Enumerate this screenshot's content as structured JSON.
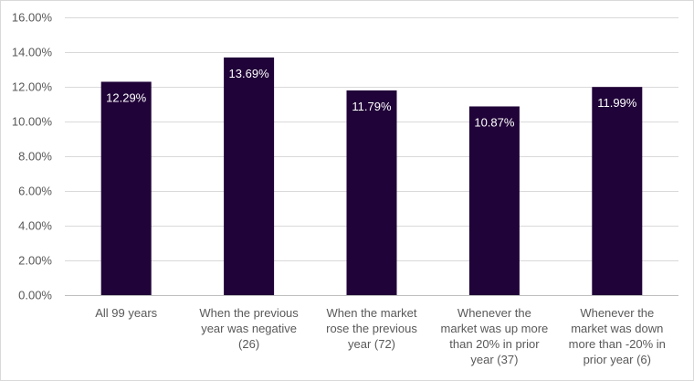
{
  "chart_data": {
    "type": "bar",
    "title": "",
    "xlabel": "",
    "ylabel": "",
    "categories": [
      "All 99 years",
      "When the previous year was negative (26)",
      "When the market rose the previous year (72)",
      "Whenever the market was up more than 20% in prior year (37)",
      "Whenever the market was down more than -20% in prior year (6)"
    ],
    "category_lines": [
      [
        "All 99 years"
      ],
      [
        "When the previous",
        "year was negative",
        "(26)"
      ],
      [
        "When the market",
        "rose the previous",
        "year (72)"
      ],
      [
        "Whenever the",
        "market was up more",
        "than 20% in prior",
        "year (37)"
      ],
      [
        "Whenever the",
        "market was down",
        "more than -20% in",
        "prior year (6)"
      ]
    ],
    "values": [
      12.29,
      13.69,
      11.79,
      10.87,
      11.99
    ],
    "data_labels": [
      "12.29%",
      "13.69%",
      "11.79%",
      "10.87%",
      "11.99%"
    ],
    "ylim": [
      0,
      16
    ],
    "y_ticks": [
      0,
      2,
      4,
      6,
      8,
      10,
      12,
      14,
      16
    ],
    "y_tick_labels": [
      "0.00%",
      "2.00%",
      "4.00%",
      "6.00%",
      "8.00%",
      "10.00%",
      "12.00%",
      "14.00%",
      "16.00%"
    ],
    "grid": true,
    "legend": "none",
    "bar_color": "#200338",
    "label_color": "#ffffff",
    "grid_color": "#d9d9d9"
  }
}
